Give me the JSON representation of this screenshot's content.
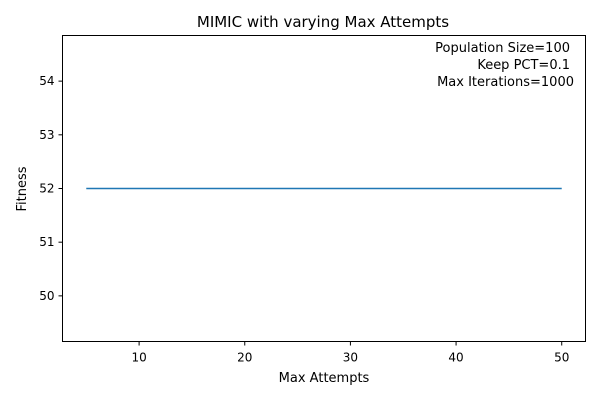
{
  "chart_data": {
    "type": "line",
    "title": "MIMIC with varying Max Attempts",
    "xlabel": "Max Attempts",
    "ylabel": "Fitness",
    "xlim": [
      2.75,
      52.25
    ],
    "ylim": [
      49.15,
      54.85
    ],
    "xticks": [
      10,
      20,
      30,
      40,
      50
    ],
    "yticks": [
      50,
      51,
      52,
      53,
      54
    ],
    "grid": false,
    "series": [
      {
        "color": "#1f77b4",
        "x": [
          5,
          10,
          15,
          20,
          25,
          30,
          35,
          40,
          45,
          50
        ],
        "y": [
          52,
          52,
          52,
          52,
          52,
          52,
          52,
          52,
          52,
          52
        ]
      }
    ],
    "annotation": {
      "placement": "top-right",
      "lines": [
        "Population Size=100",
        "Keep PCT=0.1",
        "Max Iterations=1000"
      ]
    }
  }
}
